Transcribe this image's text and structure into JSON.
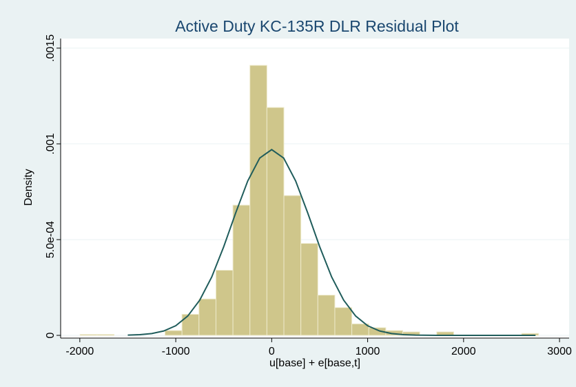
{
  "chart_data": {
    "type": "histogram",
    "title": "Active Duty KC-135R DLR Residual Plot",
    "xlabel": "u[base] + e[base,t]",
    "ylabel": "Density",
    "bins": [
      -1997,
      -1820,
      -1643,
      -1466,
      -1289,
      -1112,
      -935,
      -758,
      -581,
      -404,
      -227,
      -50,
      127,
      304,
      481,
      658,
      835,
      1012,
      1189,
      1366,
      1543,
      1720,
      1897,
      2074,
      2251,
      2428,
      2605,
      2782
    ],
    "values": [
      5e-06,
      5e-06,
      0,
      0,
      0,
      2.5e-05,
      0.00011,
      0.00019,
      0.00034,
      0.00068,
      0.00141,
      0.00119,
      0.00073,
      0.00048,
      0.00021,
      0.000145,
      6e-05,
      4e-05,
      2.5e-05,
      1.8e-05,
      0,
      1.8e-05,
      0,
      0,
      0,
      0,
      1e-05
    ],
    "color": "#cfc68b",
    "density_curve": {
      "color": "#1f5c5b",
      "x": [
        -1500,
        -1375,
        -1250,
        -1125,
        -1000,
        -875,
        -750,
        -625,
        -500,
        -375,
        -250,
        -125,
        0,
        125,
        250,
        375,
        500,
        625,
        750,
        875,
        1000,
        1125,
        1250,
        1375,
        1500,
        1750,
        2000,
        2750
      ],
      "values": [
        1.2e-06,
        3.6e-06,
        9.5e-06,
        2.29e-05,
        5.02e-05,
        0.000101,
        0.000184,
        0.000305,
        0.000463,
        0.00064,
        0.000806,
        0.000926,
        0.00097,
        0.000926,
        0.000806,
        0.00064,
        0.000463,
        0.000305,
        0.000184,
        0.000101,
        5.02e-05,
        2.29e-05,
        9.5e-06,
        3.6e-06,
        1.2e-06,
        1e-07,
        0,
        0
      ]
    },
    "xlim": [
      -2200,
      3100
    ],
    "xticks": [
      -2000,
      -1000,
      0,
      1000,
      2000,
      3000
    ],
    "ylim": [
      0,
      0.00155
    ],
    "yticks": [
      0,
      {
        "value": 0.0005,
        "label": "5.0e-04"
      },
      {
        "value": 0.001,
        "label": ".001"
      },
      {
        "value": 0.0015,
        "label": ".0015"
      }
    ],
    "grid": true
  }
}
